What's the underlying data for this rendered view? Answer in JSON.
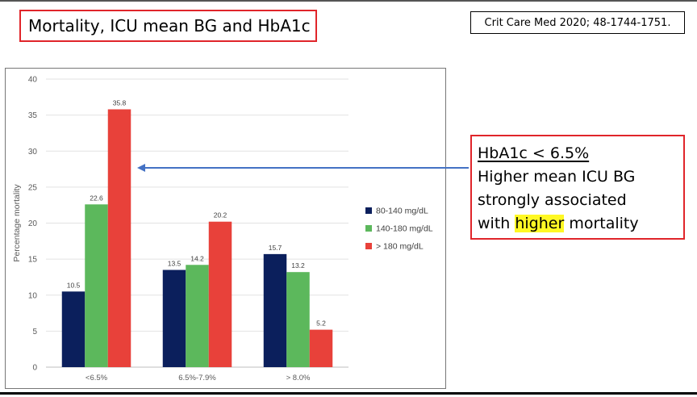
{
  "slide": {
    "title": "Mortality, ICU mean BG and HbA1c",
    "citation": "Crit Care Med 2020; 48-1744-1751."
  },
  "callout": {
    "heading": "HbA1c < 6.5%",
    "line2": "Higher mean ICU BG",
    "line3": "strongly associated",
    "line4_pre": "with ",
    "line4_highlight": "higher",
    "line4_post": " mortality"
  },
  "colors": {
    "accent_red": "#e0252a",
    "arrow": "#4472c4",
    "highlight": "#fff824"
  },
  "chart_data": {
    "type": "bar",
    "title": "",
    "xlabel": "",
    "ylabel": "Percentage mortality",
    "ylim": [
      0,
      40
    ],
    "yticks": [
      0,
      5,
      10,
      15,
      20,
      25,
      30,
      35,
      40
    ],
    "categories": [
      "<6.5%",
      "6.5%-7.9%",
      "> 8.0%"
    ],
    "grid": true,
    "legend_position": "right",
    "series": [
      {
        "name": "80-140 mg/dL",
        "color": "#0b1f5c",
        "values": [
          10.5,
          13.5,
          15.7
        ],
        "labels": [
          "10.5",
          "13.5",
          "15.7"
        ]
      },
      {
        "name": "140-180 mg/dL",
        "color": "#5cb85c",
        "values": [
          22.6,
          14.2,
          13.2
        ],
        "labels": [
          "22.6",
          "14.2",
          "13.2"
        ]
      },
      {
        "name": "> 180 mg/dL",
        "color": "#e8413a",
        "values": [
          35.8,
          20.2,
          5.2
        ],
        "labels": [
          "35.8",
          "20.2",
          "5.2"
        ]
      }
    ]
  }
}
